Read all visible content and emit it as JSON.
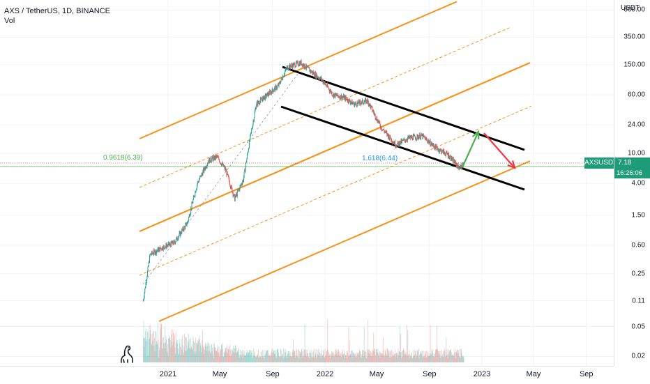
{
  "legend": {
    "symbol_line": "AXS / TetherUS, 1D, BINANCE",
    "volume_label": "Vol"
  },
  "price_axis": {
    "unit": "USDT",
    "labels": [
      "800.00",
      "350.00",
      "150.00",
      "60.00",
      "24.00",
      "10.00",
      "4.00",
      "1.50",
      "0.60",
      "0.25",
      "0.11",
      "0.05",
      "0.02"
    ]
  },
  "time_axis": {
    "labels": [
      "2021",
      "May",
      "Sep",
      "2022",
      "May",
      "Sep",
      "2023",
      "May",
      "Sep"
    ]
  },
  "current": {
    "ticker": "AXSUSDT",
    "price": "7.18",
    "countdown": "16:26:06"
  },
  "fib": {
    "left_label": "0.9618(6.39)",
    "mid_label": "1.618(6.44)"
  },
  "colors": {
    "up": "#26a69a",
    "down": "#ef5350",
    "channel": "#f7931a",
    "trend": "#000000",
    "fib_line": "#4caf50",
    "fib_label_left": "#4caf50",
    "fib_label_mid": "#2196f3",
    "arrow_up": "#4caf50",
    "arrow_down": "#f23645",
    "price_tag": "#1e9c78"
  },
  "chart_data": {
    "type": "candlestick",
    "symbol": "AXS / TetherUS",
    "interval": "1D",
    "exchange": "BINANCE",
    "y_scale": "log",
    "ylim": [
      0.015,
      1200
    ],
    "x_range": [
      "2020-11",
      "2023-10"
    ],
    "last_price": 7.18,
    "close_path": [
      {
        "date": "2020-11-04",
        "close": 0.11
      },
      {
        "date": "2020-11-20",
        "close": 0.45
      },
      {
        "date": "2020-12-15",
        "close": 0.55
      },
      {
        "date": "2021-01-15",
        "close": 0.65
      },
      {
        "date": "2021-02-15",
        "close": 1.2
      },
      {
        "date": "2021-03-10",
        "close": 4.0
      },
      {
        "date": "2021-04-05",
        "close": 8.0
      },
      {
        "date": "2021-04-25",
        "close": 9.0
      },
      {
        "date": "2021-05-15",
        "close": 6.0
      },
      {
        "date": "2021-06-05",
        "close": 2.5
      },
      {
        "date": "2021-06-25",
        "close": 4.5
      },
      {
        "date": "2021-07-10",
        "close": 15.0
      },
      {
        "date": "2021-07-25",
        "close": 45.0
      },
      {
        "date": "2021-08-20",
        "close": 60.0
      },
      {
        "date": "2021-09-15",
        "close": 80.0
      },
      {
        "date": "2021-10-05",
        "close": 140.0
      },
      {
        "date": "2021-11-06",
        "close": 160.0
      },
      {
        "date": "2021-12-01",
        "close": 120.0
      },
      {
        "date": "2021-12-25",
        "close": 95.0
      },
      {
        "date": "2022-01-20",
        "close": 60.0
      },
      {
        "date": "2022-02-15",
        "close": 55.0
      },
      {
        "date": "2022-03-10",
        "close": 45.0
      },
      {
        "date": "2022-04-10",
        "close": 50.0
      },
      {
        "date": "2022-05-12",
        "close": 22.0
      },
      {
        "date": "2022-06-15",
        "close": 13.0
      },
      {
        "date": "2022-07-15",
        "close": 16.0
      },
      {
        "date": "2022-08-15",
        "close": 17.0
      },
      {
        "date": "2022-09-15",
        "close": 12.0
      },
      {
        "date": "2022-10-15",
        "close": 9.5
      },
      {
        "date": "2022-11-09",
        "close": 6.4
      },
      {
        "date": "2022-11-20",
        "close": 7.18
      }
    ],
    "annotations": [
      {
        "type": "fib_level",
        "label": "0.9618(6.39)",
        "price": 6.39
      },
      {
        "type": "fib_level",
        "label": "1.618(6.44)",
        "price": 6.44
      }
    ]
  }
}
